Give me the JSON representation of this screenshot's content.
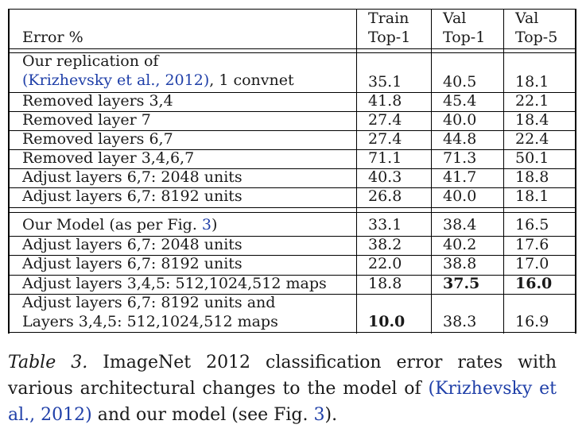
{
  "table": {
    "header": {
      "label": "Error %",
      "columns": [
        {
          "line1": "Train",
          "line2": "Top-1"
        },
        {
          "line1": "Val",
          "line2": "Top-1"
        },
        {
          "line1": "Val",
          "line2": "Top-5"
        }
      ]
    },
    "group1": [
      {
        "label_line1": "Our replication of",
        "label_cite": "(Krizhevsky et al., 2012)",
        "label_suffix": ", 1 convnet",
        "values": [
          "35.1",
          "40.5",
          "18.1"
        ]
      },
      {
        "label": "Removed layers 3,4",
        "values": [
          "41.8",
          "45.4",
          "22.1"
        ]
      },
      {
        "label": "Removed layer 7",
        "values": [
          "27.4",
          "40.0",
          "18.4"
        ]
      },
      {
        "label": "Removed layers 6,7",
        "values": [
          "27.4",
          "44.8",
          "22.4"
        ]
      },
      {
        "label": "Removed layer 3,4,6,7",
        "values": [
          "71.1",
          "71.3",
          "50.1"
        ]
      },
      {
        "label": "Adjust layers 6,7: 2048 units",
        "values": [
          "40.3",
          "41.7",
          "18.8"
        ]
      },
      {
        "label": "Adjust layers 6,7: 8192 units",
        "values": [
          "26.8",
          "40.0",
          "18.1"
        ]
      }
    ],
    "group2": [
      {
        "label_prefix": "Our Model (as per Fig. ",
        "label_ref": "3",
        "label_suffix": ")",
        "values": [
          "33.1",
          "38.4",
          "16.5"
        ]
      },
      {
        "label": "Adjust layers 6,7: 2048 units",
        "values": [
          "38.2",
          "40.2",
          "17.6"
        ]
      },
      {
        "label": "Adjust layers 6,7: 8192 units",
        "values": [
          "22.0",
          "38.8",
          "17.0"
        ]
      },
      {
        "label": "Adjust layers 3,4,5: 512,1024,512 maps",
        "values": [
          "18.8",
          "37.5",
          "16.0"
        ]
      },
      {
        "label_line1": "Adjust layers 6,7: 8192 units and",
        "label_line2": "Layers 3,4,5: 512,1024,512 maps",
        "values": [
          "10.0",
          "38.3",
          "16.9"
        ]
      }
    ]
  },
  "caption": {
    "label": "Table 3.",
    "text1": " ImageNet 2012 classification error rates with various architectural changes to the model of ",
    "cite": "(Krizhevsky et al., 2012)",
    "text2": " and our model (see Fig. ",
    "ref": "3",
    "text3": ")."
  }
}
